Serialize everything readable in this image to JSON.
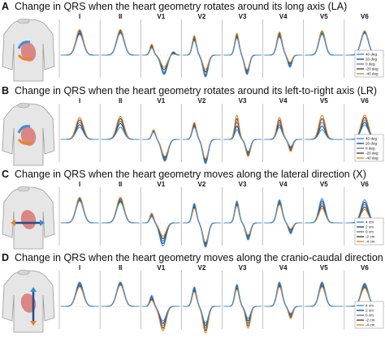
{
  "figure": {
    "background": "#ffffff"
  },
  "colors": {
    "orange": "#e3862a",
    "light_blue": "#3b8fd6",
    "dark_blue": "#1f4e8c",
    "gray": "#7a7a7a",
    "dark_gray": "#444444",
    "torso": "#e6e6e6",
    "heart": "#d97a7a",
    "divider": "#9a9a9a",
    "baseline": "#c8c8c8"
  },
  "leads": [
    "I",
    "II",
    "V1",
    "V2",
    "V3",
    "V4",
    "V5",
    "V6"
  ],
  "icons": [
    "torso-heart-rotation-icon",
    "torso-heart-rotation-icon",
    "torso-heart-translation-icon",
    "torso-heart-translation-icon"
  ],
  "chart_data": [
    {
      "type": "line",
      "letter": "A",
      "title": "Change in QRS when the heart geometry rotates around its long axis (LA)",
      "legend": [
        "40 deg",
        "20 deg",
        "0 deg",
        "-20 deg",
        "-40 deg"
      ],
      "legend_colors": [
        "#3b8fd6",
        "#1f4e8c",
        "#7a7a7a",
        "#444444",
        "#e3862a"
      ],
      "leads": [
        {
          "lead": "I",
          "peaks": [
            {
              "t": 0.5,
              "w": 0.14,
              "a": [
                0.85,
                0.9,
                0.95,
                1.0,
                1.05
              ]
            }
          ]
        },
        {
          "lead": "II",
          "peaks": [
            {
              "t": 0.5,
              "w": 0.14,
              "a": [
                0.9,
                0.95,
                1.0,
                1.02,
                1.05
              ]
            }
          ]
        },
        {
          "lead": "V1",
          "peaks": [
            {
              "t": 0.25,
              "w": 0.07,
              "a": [
                0.3,
                0.35,
                0.4,
                0.42,
                0.45
              ]
            },
            {
              "t": 0.58,
              "w": 0.12,
              "a": [
                -0.8,
                -0.75,
                -0.7,
                -0.6,
                -0.5
              ]
            },
            {
              "t": 0.82,
              "w": 0.08,
              "a": [
                0.15,
                0.12,
                0.1,
                0.08,
                0.05
              ]
            }
          ]
        },
        {
          "lead": "V2",
          "peaks": [
            {
              "t": 0.3,
              "w": 0.08,
              "a": [
                0.6,
                0.65,
                0.7,
                0.75,
                0.8
              ]
            },
            {
              "t": 0.6,
              "w": 0.1,
              "a": [
                -0.9,
                -0.85,
                -0.8,
                -0.7,
                -0.6
              ]
            }
          ]
        },
        {
          "lead": "V3",
          "peaks": [
            {
              "t": 0.35,
              "w": 0.08,
              "a": [
                0.7,
                0.75,
                0.8,
                0.85,
                0.9
              ]
            },
            {
              "t": 0.62,
              "w": 0.09,
              "a": [
                -0.8,
                -0.75,
                -0.7,
                -0.65,
                -0.6
              ]
            }
          ]
        },
        {
          "lead": "V4",
          "peaks": [
            {
              "t": 0.4,
              "w": 0.1,
              "a": [
                0.75,
                0.8,
                0.85,
                0.9,
                0.95
              ]
            },
            {
              "t": 0.68,
              "w": 0.08,
              "a": [
                -0.5,
                -0.45,
                -0.4,
                -0.35,
                -0.3
              ]
            }
          ]
        },
        {
          "lead": "V5",
          "peaks": [
            {
              "t": 0.45,
              "w": 0.12,
              "a": [
                0.85,
                0.9,
                0.95,
                1.0,
                1.0
              ]
            }
          ]
        },
        {
          "lead": "V6",
          "peaks": [
            {
              "t": 0.5,
              "w": 0.14,
              "a": [
                0.9,
                0.93,
                0.96,
                0.98,
                1.0
              ]
            }
          ]
        }
      ]
    },
    {
      "type": "line",
      "letter": "B",
      "title": "Change in QRS when the heart geometry rotates around its left-to-right axis (LR)",
      "legend": [
        "40 deg",
        "20 deg",
        "0 deg",
        "-20 deg",
        "-40 deg"
      ],
      "legend_colors": [
        "#3b8fd6",
        "#1f4e8c",
        "#7a7a7a",
        "#444444",
        "#e3862a"
      ],
      "leads": [
        {
          "lead": "I",
          "peaks": [
            {
              "t": 0.5,
              "w": 0.14,
              "a": [
                0.5,
                0.6,
                0.7,
                0.8,
                0.9
              ]
            }
          ]
        },
        {
          "lead": "II",
          "peaks": [
            {
              "t": 0.5,
              "w": 0.14,
              "a": [
                0.5,
                0.65,
                0.75,
                0.85,
                0.95
              ]
            }
          ]
        },
        {
          "lead": "V1",
          "peaks": [
            {
              "t": 0.3,
              "w": 0.07,
              "a": [
                0.3,
                0.32,
                0.35,
                0.37,
                0.4
              ]
            },
            {
              "t": 0.6,
              "w": 0.12,
              "a": [
                -0.9,
                -0.85,
                -0.8,
                -0.75,
                -0.7
              ]
            }
          ]
        },
        {
          "lead": "V2",
          "peaks": [
            {
              "t": 0.3,
              "w": 0.08,
              "a": [
                0.5,
                0.55,
                0.6,
                0.65,
                0.7
              ]
            },
            {
              "t": 0.6,
              "w": 0.1,
              "a": [
                -1.0,
                -0.95,
                -0.9,
                -0.85,
                -0.8
              ]
            }
          ]
        },
        {
          "lead": "V3",
          "peaks": [
            {
              "t": 0.35,
              "w": 0.08,
              "a": [
                0.4,
                0.55,
                0.7,
                0.85,
                1.0
              ]
            },
            {
              "t": 0.65,
              "w": 0.09,
              "a": [
                -0.5,
                -0.55,
                -0.6,
                -0.65,
                -0.7
              ]
            }
          ]
        },
        {
          "lead": "V4",
          "peaks": [
            {
              "t": 0.4,
              "w": 0.1,
              "a": [
                0.5,
                0.6,
                0.7,
                0.8,
                0.9
              ]
            },
            {
              "t": 0.7,
              "w": 0.08,
              "a": [
                -0.3,
                -0.35,
                -0.4,
                -0.45,
                -0.5
              ]
            }
          ]
        },
        {
          "lead": "V5",
          "peaks": [
            {
              "t": 0.45,
              "w": 0.12,
              "a": [
                0.4,
                0.55,
                0.7,
                0.85,
                1.0
              ]
            }
          ]
        },
        {
          "lead": "V6",
          "peaks": [
            {
              "t": 0.5,
              "w": 0.14,
              "a": [
                0.6,
                0.7,
                0.8,
                0.9,
                1.0
              ]
            }
          ]
        }
      ]
    },
    {
      "type": "line",
      "letter": "C",
      "title": "Change in QRS when the heart geometry moves along the lateral direction (X)",
      "legend": [
        "4 cm",
        "2 cm",
        "0 cm",
        "-2 cm",
        "-4 cm"
      ],
      "legend_colors": [
        "#3b8fd6",
        "#1f4e8c",
        "#7a7a7a",
        "#444444",
        "#e3862a"
      ],
      "leads": [
        {
          "lead": "I",
          "peaks": [
            {
              "t": 0.5,
              "w": 0.14,
              "a": [
                0.9,
                0.95,
                1.0,
                1.02,
                1.05
              ]
            }
          ]
        },
        {
          "lead": "II",
          "peaks": [
            {
              "t": 0.5,
              "w": 0.14,
              "a": [
                0.85,
                0.9,
                0.95,
                1.0,
                1.05
              ]
            }
          ]
        },
        {
          "lead": "V1",
          "peaks": [
            {
              "t": 0.25,
              "w": 0.07,
              "a": [
                0.25,
                0.3,
                0.35,
                0.38,
                0.4
              ]
            },
            {
              "t": 0.55,
              "w": 0.12,
              "a": [
                -0.95,
                -0.85,
                -0.75,
                -0.65,
                -0.55
              ]
            }
          ]
        },
        {
          "lead": "V2",
          "peaks": [
            {
              "t": 0.3,
              "w": 0.08,
              "a": [
                0.8,
                0.75,
                0.7,
                0.65,
                0.6
              ]
            },
            {
              "t": 0.6,
              "w": 0.1,
              "a": [
                -1.0,
                -0.95,
                -0.9,
                -0.85,
                -0.8
              ]
            }
          ]
        },
        {
          "lead": "V3",
          "peaks": [
            {
              "t": 0.35,
              "w": 0.08,
              "a": [
                0.9,
                0.85,
                0.8,
                0.75,
                0.7
              ]
            },
            {
              "t": 0.65,
              "w": 0.09,
              "a": [
                -0.7,
                -0.65,
                -0.6,
                -0.55,
                -0.5
              ]
            }
          ]
        },
        {
          "lead": "V4",
          "peaks": [
            {
              "t": 0.4,
              "w": 0.1,
              "a": [
                0.95,
                0.9,
                0.85,
                0.8,
                0.75
              ]
            },
            {
              "t": 0.7,
              "w": 0.08,
              "a": [
                -0.45,
                -0.4,
                -0.35,
                -0.3,
                -0.25
              ]
            }
          ]
        },
        {
          "lead": "V5",
          "peaks": [
            {
              "t": 0.45,
              "w": 0.12,
              "a": [
                1.0,
                0.9,
                0.8,
                0.7,
                0.6
              ]
            }
          ]
        },
        {
          "lead": "V6",
          "peaks": [
            {
              "t": 0.5,
              "w": 0.14,
              "a": [
                0.95,
                0.85,
                0.75,
                0.65,
                0.55
              ]
            }
          ]
        }
      ]
    },
    {
      "type": "line",
      "letter": "D",
      "title": "Change in QRS when the heart geometry moves along the cranio-caudal direction (Z)",
      "legend": [
        "4 cm",
        "2 cm",
        "0 cm",
        "-2 cm",
        "-4 cm"
      ],
      "legend_colors": [
        "#3b8fd6",
        "#1f4e8c",
        "#7a7a7a",
        "#444444",
        "#e3862a"
      ],
      "leads": [
        {
          "lead": "I",
          "peaks": [
            {
              "t": 0.5,
              "w": 0.14,
              "a": [
                1.0,
                0.95,
                0.9,
                0.85,
                0.8
              ]
            }
          ]
        },
        {
          "lead": "II",
          "peaks": [
            {
              "t": 0.5,
              "w": 0.14,
              "a": [
                1.0,
                0.97,
                0.94,
                0.9,
                0.87
              ]
            }
          ]
        },
        {
          "lead": "V1",
          "peaks": [
            {
              "t": 0.25,
              "w": 0.07,
              "a": [
                0.45,
                0.4,
                0.35,
                0.3,
                0.25
              ]
            },
            {
              "t": 0.55,
              "w": 0.12,
              "a": [
                -0.6,
                -0.7,
                -0.8,
                -0.9,
                -1.0
              ]
            }
          ]
        },
        {
          "lead": "V2",
          "peaks": [
            {
              "t": 0.3,
              "w": 0.08,
              "a": [
                0.8,
                0.75,
                0.7,
                0.65,
                0.6
              ]
            },
            {
              "t": 0.6,
              "w": 0.1,
              "a": [
                -0.7,
                -0.8,
                -0.9,
                -1.0,
                -1.1
              ]
            }
          ]
        },
        {
          "lead": "V3",
          "peaks": [
            {
              "t": 0.35,
              "w": 0.08,
              "a": [
                0.9,
                0.85,
                0.8,
                0.75,
                0.7
              ]
            },
            {
              "t": 0.65,
              "w": 0.09,
              "a": [
                -0.5,
                -0.6,
                -0.7,
                -0.8,
                -0.9
              ]
            }
          ]
        },
        {
          "lead": "V4",
          "peaks": [
            {
              "t": 0.4,
              "w": 0.1,
              "a": [
                1.0,
                0.95,
                0.9,
                0.85,
                0.8
              ]
            },
            {
              "t": 0.7,
              "w": 0.08,
              "a": [
                -0.3,
                -0.35,
                -0.4,
                -0.45,
                -0.5
              ]
            }
          ]
        },
        {
          "lead": "V5",
          "peaks": [
            {
              "t": 0.45,
              "w": 0.12,
              "a": [
                1.0,
                0.95,
                0.9,
                0.85,
                0.8
              ]
            }
          ]
        },
        {
          "lead": "V6",
          "peaks": [
            {
              "t": 0.5,
              "w": 0.14,
              "a": [
                0.95,
                0.9,
                0.85,
                0.8,
                0.75
              ]
            }
          ]
        }
      ]
    }
  ]
}
